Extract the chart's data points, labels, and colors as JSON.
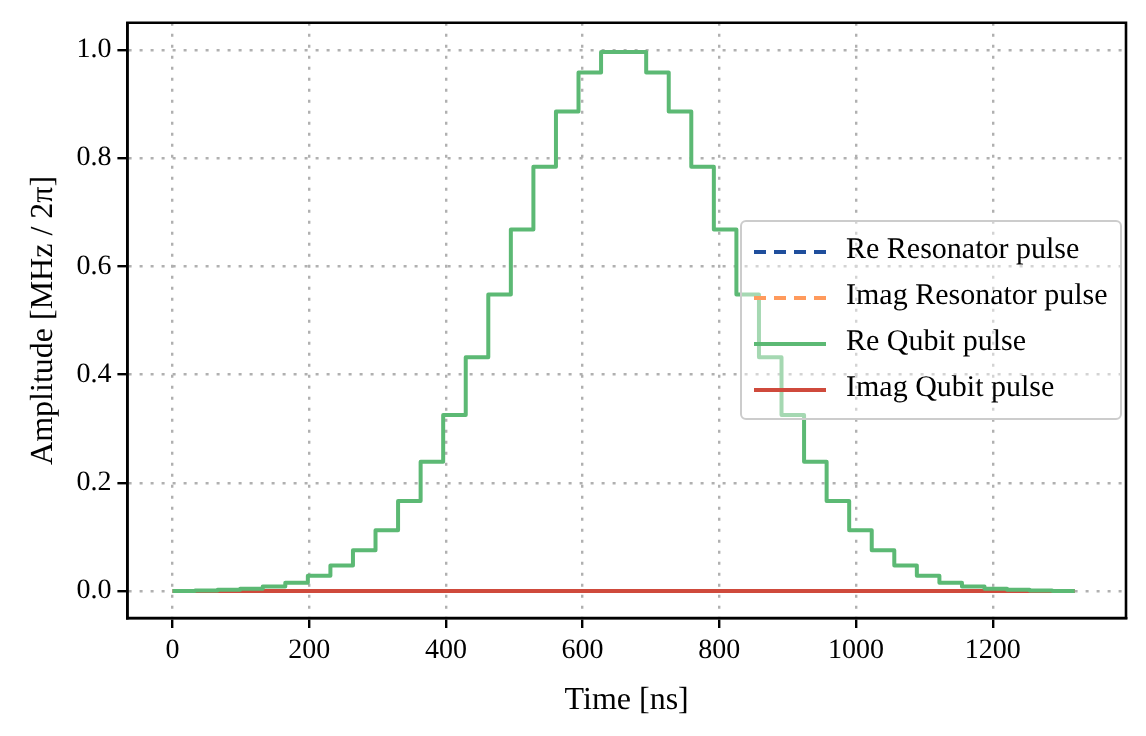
{
  "chart_data": {
    "type": "step",
    "xlabel": "Time [ns]",
    "ylabel": "Amplitude [MHz / 2π]",
    "xlim": [
      -66,
      1395
    ],
    "xticks": [
      0,
      200,
      400,
      600,
      800,
      1000,
      1200
    ],
    "ylim": [
      -0.05,
      1.05
    ],
    "yticks": [
      {
        "value": 0,
        "label": "0.0"
      },
      {
        "value": 0.2,
        "label": "0.2"
      },
      {
        "value": 0.4,
        "label": "0.4"
      },
      {
        "value": 0.6,
        "label": "0.6"
      },
      {
        "value": 0.8,
        "label": "0.8"
      },
      {
        "value": 1,
        "label": "1.0"
      }
    ],
    "grid": true,
    "legend": "right",
    "marker": "none",
    "series": [
      {
        "name": "Re Resonator pulse",
        "color": "#1f4e9c",
        "line_style": "dashed",
        "values": [
          null,
          null
        ]
      },
      {
        "name": "Imag Resonator pulse",
        "color": "#ff9a5c",
        "line_style": "dashed",
        "values": [
          null,
          null
        ]
      },
      {
        "name": "Re Qubit pulse",
        "color": "#5cb974",
        "line_style": "solid",
        "x": [
          0,
          33,
          66,
          99,
          132,
          165,
          198,
          231,
          264,
          297,
          330,
          363,
          396,
          429,
          462,
          495,
          528,
          561,
          594,
          627,
          660,
          693,
          726,
          759,
          792,
          825,
          858,
          891,
          924,
          957,
          990,
          1023,
          1056,
          1089,
          1122,
          1155,
          1188,
          1221,
          1254,
          1287,
          1320
        ],
        "values": [
          0,
          0.001,
          0.002,
          0.004,
          0.008,
          0.015,
          0.028,
          0.047,
          0.075,
          0.112,
          0.166,
          0.239,
          0.325,
          0.432,
          0.548,
          0.668,
          0.784,
          0.886,
          0.958,
          0.996,
          0.996,
          0.958,
          0.886,
          0.784,
          0.668,
          0.548,
          0.432,
          0.325,
          0.239,
          0.166,
          0.112,
          0.075,
          0.047,
          0.028,
          0.015,
          0.008,
          0.004,
          0.002,
          0.001,
          0,
          0
        ]
      },
      {
        "name": "Imag Qubit pulse",
        "color": "#cf4a3c",
        "line_style": "solid",
        "x": [
          0,
          1320
        ],
        "values": [
          0,
          0
        ]
      }
    ]
  }
}
